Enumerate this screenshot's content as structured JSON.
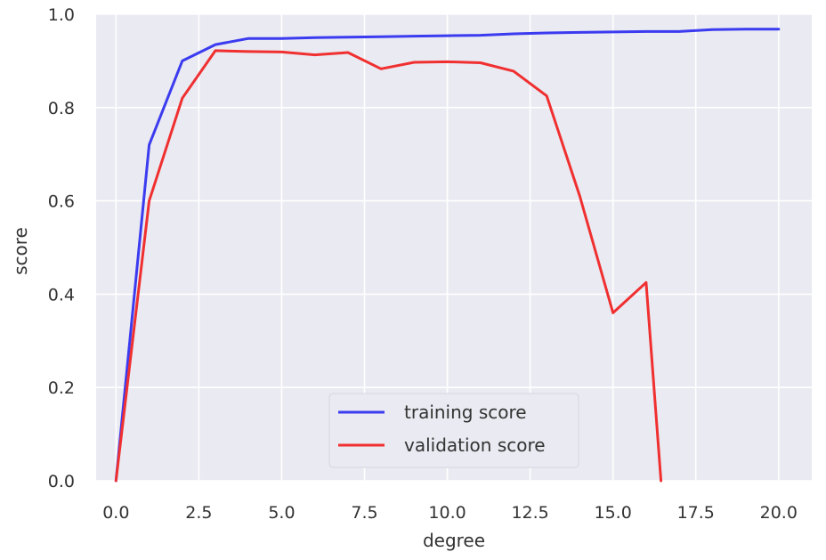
{
  "chart_data": {
    "type": "line",
    "title": "",
    "xlabel": "degree",
    "ylabel": "score",
    "xlim": [
      -0.6,
      21.0
    ],
    "ylim": [
      0.0,
      1.0
    ],
    "xticks": [
      0.0,
      2.5,
      5.0,
      7.5,
      10.0,
      12.5,
      15.0,
      17.5,
      20.0
    ],
    "xtick_labels": [
      "0.0",
      "2.5",
      "5.0",
      "7.5",
      "10.0",
      "12.5",
      "15.0",
      "17.5",
      "20.0"
    ],
    "yticks": [
      0.0,
      0.2,
      0.4,
      0.6,
      0.8,
      1.0
    ],
    "ytick_labels": [
      "0.0",
      "0.2",
      "0.4",
      "0.6",
      "0.8",
      "1.0"
    ],
    "grid": true,
    "legend_position": "bottom-center",
    "series": [
      {
        "name": "training score",
        "color": "#3b3bf0",
        "points": [
          [
            0,
            0.0
          ],
          [
            1,
            0.72
          ],
          [
            2,
            0.9
          ],
          [
            3,
            0.935
          ],
          [
            4,
            0.948
          ],
          [
            5,
            0.948
          ],
          [
            6,
            0.95
          ],
          [
            7,
            0.951
          ],
          [
            8,
            0.952
          ],
          [
            9,
            0.953
          ],
          [
            10,
            0.954
          ],
          [
            11,
            0.955
          ],
          [
            12,
            0.958
          ],
          [
            13,
            0.96
          ],
          [
            14,
            0.961
          ],
          [
            15,
            0.962
          ],
          [
            16,
            0.963
          ],
          [
            17,
            0.963
          ],
          [
            18,
            0.967
          ],
          [
            19,
            0.968
          ],
          [
            20,
            0.968
          ]
        ]
      },
      {
        "name": "validation score",
        "color": "#f03030",
        "points": [
          [
            0,
            0.0
          ],
          [
            1,
            0.6
          ],
          [
            2,
            0.82
          ],
          [
            3,
            0.922
          ],
          [
            4,
            0.92
          ],
          [
            5,
            0.919
          ],
          [
            6,
            0.913
          ],
          [
            7,
            0.918
          ],
          [
            8,
            0.883
          ],
          [
            9,
            0.897
          ],
          [
            10,
            0.898
          ],
          [
            11,
            0.896
          ],
          [
            12,
            0.878
          ],
          [
            13,
            0.825
          ],
          [
            14,
            0.61
          ],
          [
            15,
            0.36
          ],
          [
            16,
            0.425
          ],
          [
            16.45,
            0.0
          ]
        ]
      }
    ]
  }
}
